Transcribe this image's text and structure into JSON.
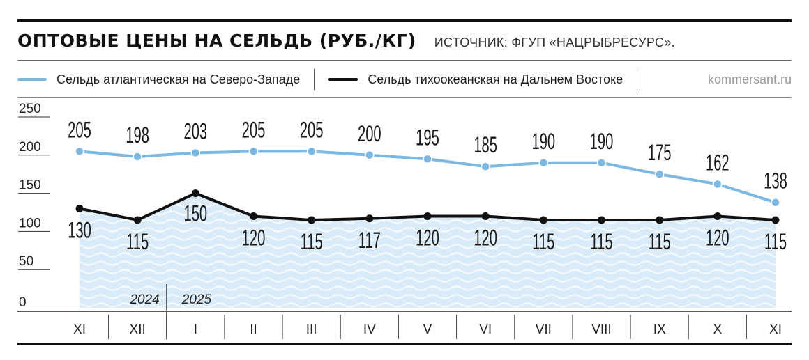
{
  "header": {
    "title": "ОПТОВЫЕ ЦЕНЫ НА СЕЛЬДЬ (РУБ./КГ)",
    "source": "ИСТОЧНИК: ФГУП «НАЦРЫБРЕСУРС».",
    "credit": "kommersant.ru"
  },
  "colors": {
    "atlantic": "#7db8e3",
    "pacific": "#111111",
    "area": "#d9eaf8",
    "wave": "#f2f8fd"
  },
  "chart_data": {
    "type": "line",
    "categories": [
      "XI",
      "XII",
      "I",
      "II",
      "III",
      "IV",
      "V",
      "VI",
      "VII",
      "VIII",
      "IX",
      "X",
      "XI"
    ],
    "years": [
      {
        "label": "2024",
        "start": "XI",
        "end": "XII"
      },
      {
        "label": "2025",
        "start": "I",
        "end": "XI"
      }
    ],
    "series": [
      {
        "name": "Сельдь атлантическая на Северо-Западе",
        "color": "#7db8e3",
        "values": [
          205,
          198,
          203,
          205,
          205,
          200,
          195,
          185,
          190,
          190,
          175,
          162,
          138
        ]
      },
      {
        "name": "Сельдь тихоокеанская на Дальнем Востоке",
        "color": "#111111",
        "values": [
          130,
          115,
          150,
          120,
          115,
          117,
          120,
          120,
          115,
          115,
          115,
          120,
          115
        ]
      }
    ],
    "yticks": [
      0,
      50,
      100,
      150,
      200,
      250
    ],
    "ylim": [
      0,
      250
    ],
    "legend": "top",
    "grid": false
  }
}
